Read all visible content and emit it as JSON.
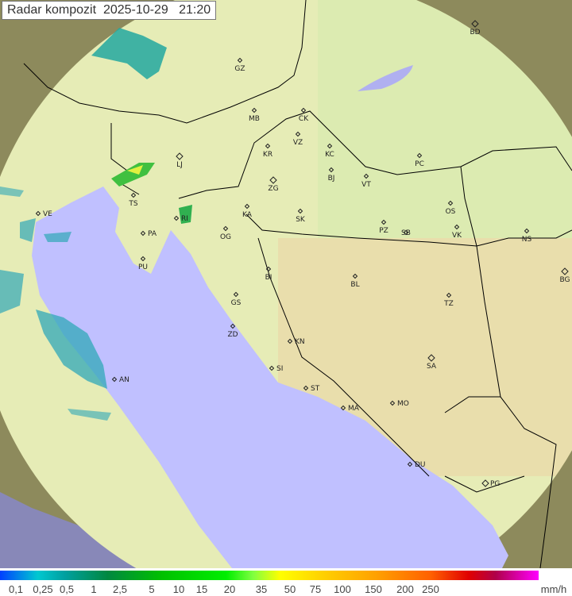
{
  "title": "Radar kompozit",
  "date": "2025-10-29",
  "time": "21:20",
  "colors": {
    "sea": "#c0c0ff",
    "land_in_range": "#e8efb8",
    "land_out_of_range": "#8a8a5a",
    "borders": "#000000",
    "rain_light": "#20a0a0",
    "rain_moderate": "#30c030"
  },
  "cities": [
    "BD",
    "GZ",
    "MB",
    "CK",
    "VZ",
    "KR",
    "KC",
    "LJ",
    "PC",
    "BJ",
    "VT",
    "ZG",
    "TS",
    "OS",
    "KA",
    "SK",
    "VE",
    "RI",
    "PZ",
    "SB",
    "VK",
    "NS",
    "PA",
    "OG",
    "PU",
    "BI",
    "BL",
    "BG",
    "GS",
    "TZ",
    "ZD",
    "KN",
    "SA",
    "SI",
    "AN",
    "ST",
    "MA",
    "MO",
    "DU",
    "PG"
  ],
  "legend": {
    "ticks": [
      "0,1",
      "0,25",
      "0,5",
      "1",
      "2,5",
      "5",
      "10",
      "15",
      "20",
      "35",
      "50",
      "75",
      "100",
      "150",
      "200",
      "250"
    ],
    "unit": "mm/h"
  }
}
